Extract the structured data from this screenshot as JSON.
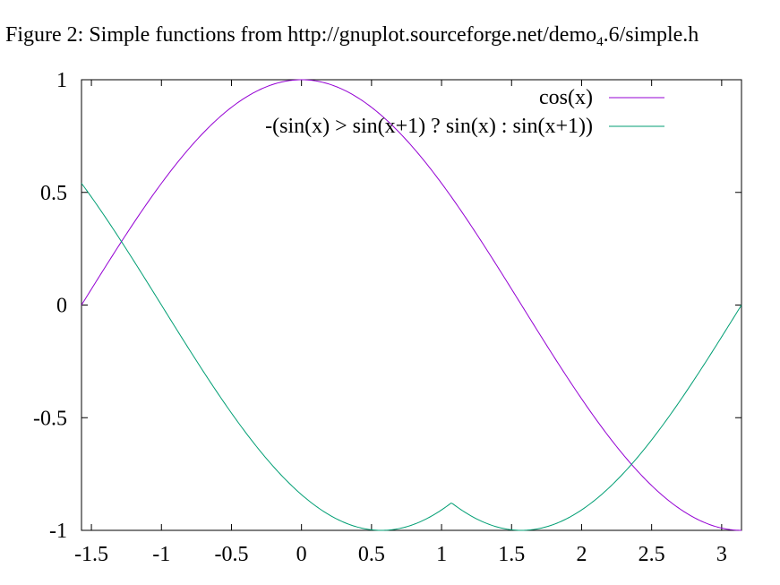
{
  "figure": {
    "caption_prefix": "Figure 2: Simple functions from http://gnuplot.sourceforge.net/demo",
    "caption_sub": "4",
    "caption_suffix": ".6/simple.h"
  },
  "chart_data": {
    "type": "line",
    "title": "",
    "xlabel": "",
    "ylabel": "",
    "xlim": [
      -1.5708,
      3.1416
    ],
    "ylim": [
      -1,
      1
    ],
    "xticks": [
      -1.5,
      -1,
      -0.5,
      0,
      0.5,
      1,
      1.5,
      2,
      2.5,
      3
    ],
    "xtick_labels": [
      "-1.5",
      "-1",
      "-0.5",
      "0",
      "0.5",
      "1",
      "1.5",
      "2",
      "2.5",
      "3"
    ],
    "yticks": [
      -1,
      -0.5,
      0,
      0.5,
      1
    ],
    "ytick_labels": [
      "-1",
      "-0.5",
      "0",
      "0.5",
      "1"
    ],
    "grid": false,
    "legend_position": "top-right",
    "series": [
      {
        "name": "cos(x)",
        "color": "#9400d3",
        "x": [
          -1.5708,
          -1.25,
          -1.0,
          -0.75,
          -0.5,
          -0.25,
          0.0,
          0.25,
          0.5,
          0.75,
          1.0,
          1.25,
          1.5,
          1.75,
          2.0,
          2.25,
          2.5,
          2.75,
          3.0,
          3.1416
        ],
        "y": [
          0.0,
          0.315,
          0.54,
          0.732,
          0.878,
          0.969,
          1.0,
          0.969,
          0.878,
          0.732,
          0.54,
          0.315,
          0.071,
          -0.178,
          -0.416,
          -0.628,
          -0.801,
          -0.924,
          -0.99,
          -1.0
        ]
      },
      {
        "name": "-(sin(x) > sin(x+1) ? sin(x) : sin(x+1))",
        "color": "#009e73",
        "x": [
          -1.5708,
          -1.25,
          -1.0,
          -0.75,
          -0.5,
          -0.25,
          0.0,
          0.25,
          0.5,
          0.75,
          1.0,
          1.0708,
          1.25,
          1.5,
          1.75,
          2.0,
          2.25,
          2.5,
          2.75,
          3.0,
          3.1416
        ],
        "y": [
          0.54,
          0.245,
          -0.0,
          -0.247,
          -0.479,
          -0.682,
          -0.841,
          -0.949,
          -0.997,
          -0.982,
          -0.909,
          -0.878,
          -0.949,
          -0.997,
          -0.984,
          -0.909,
          -0.778,
          -0.598,
          -0.382,
          -0.141,
          0.0
        ]
      }
    ]
  }
}
